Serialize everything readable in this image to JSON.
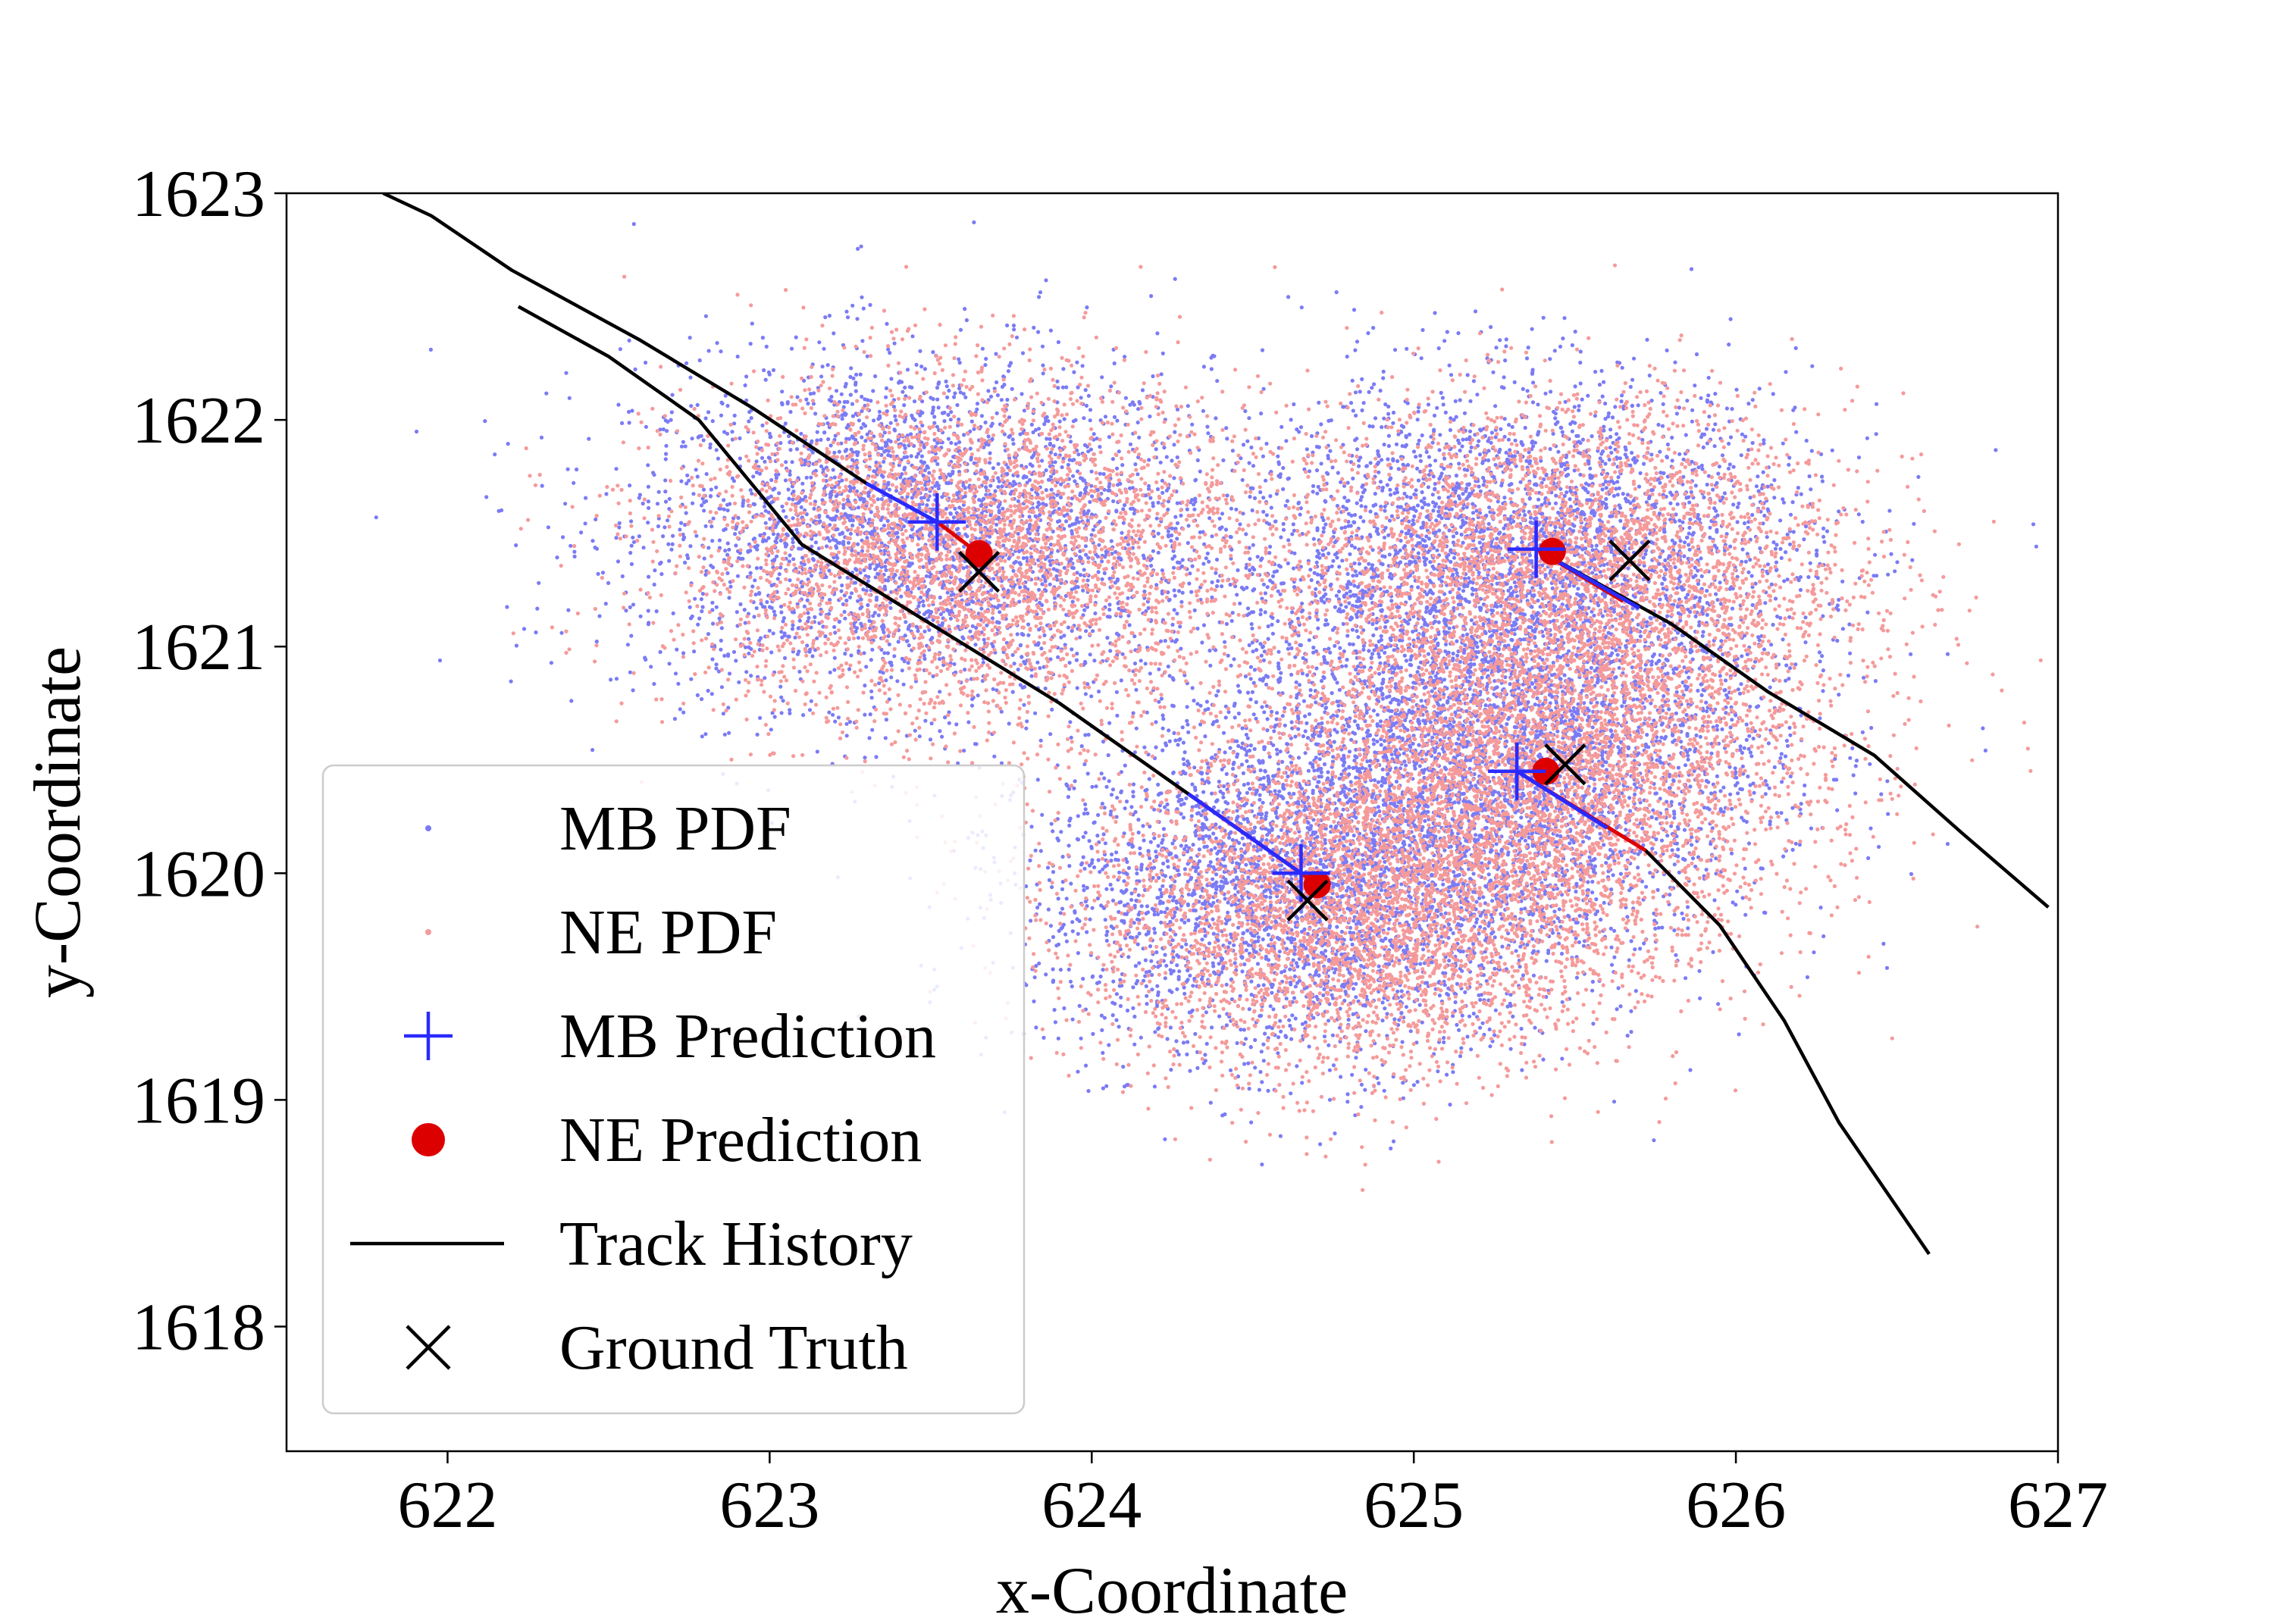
{
  "chart_data": {
    "type": "scatter",
    "title": "",
    "xlabel": "x-Coordinate",
    "ylabel": "y-Coordinate",
    "xlim": [
      621.5,
      627.0
    ],
    "ylim": [
      1617.45,
      1623.0
    ],
    "xticks": [
      622,
      623,
      624,
      625,
      626,
      627
    ],
    "yticks": [
      1618,
      1619,
      1620,
      1621,
      1622,
      1623
    ],
    "grid": false,
    "legend_position": "lower-left",
    "colors": {
      "mb": "#2a2aff",
      "mb_cloud": "#7b7bf5",
      "ne": "#dd0000",
      "ne_cloud": "#f59a9a",
      "track": "#000000",
      "ground_truth": "#000000"
    },
    "legend": [
      {
        "key": "mb_pdf",
        "label": "MB PDF"
      },
      {
        "key": "ne_pdf",
        "label": "NE PDF"
      },
      {
        "key": "mb_pred",
        "label": "MB Prediction"
      },
      {
        "key": "ne_pred",
        "label": "NE Prediction"
      },
      {
        "key": "track",
        "label": "Track History"
      },
      {
        "key": "ground_truth",
        "label": "Ground Truth"
      }
    ],
    "pdf_clusters": [
      {
        "center": [
          623.55,
          1621.45
        ],
        "spread": [
          0.45,
          0.38
        ]
      },
      {
        "center": [
          625.4,
          1621.35
        ],
        "spread": [
          0.45,
          0.38
        ]
      },
      {
        "center": [
          624.75,
          1619.85
        ],
        "spread": [
          0.42,
          0.36
        ]
      },
      {
        "center": [
          625.35,
          1620.45
        ],
        "spread": [
          0.42,
          0.38
        ]
      }
    ],
    "tracks": [
      {
        "name": "Track History 1",
        "x": [
          621.8,
          621.95,
          622.2,
          622.6,
          622.95,
          623.3,
          623.52
        ],
        "y": [
          1623.0,
          1622.9,
          1622.66,
          1622.35,
          1622.05,
          1621.72,
          1621.55
        ]
      },
      {
        "name": "Track History 2",
        "x": [
          622.22,
          622.5,
          622.78,
          623.1,
          623.5,
          623.9,
          624.3,
          624.65
        ],
        "y": [
          1622.5,
          1622.28,
          1622.0,
          1621.45,
          1621.1,
          1620.75,
          1620.35,
          1620.0
        ]
      },
      {
        "name": "Track History 3",
        "x": [
          625.38,
          625.8,
          626.1,
          626.43,
          626.7,
          626.97
        ],
        "y": [
          1621.43,
          1621.1,
          1620.8,
          1620.52,
          1620.18,
          1619.85
        ]
      },
      {
        "name": "Track History 4",
        "x": [
          625.32,
          625.72,
          625.95,
          626.15,
          626.32,
          626.6
        ],
        "y": [
          1620.45,
          1620.1,
          1619.77,
          1619.35,
          1618.9,
          1618.32
        ]
      }
    ],
    "mb_predictions": [
      {
        "x": 623.52,
        "y": 1621.55
      },
      {
        "x": 625.38,
        "y": 1621.43
      },
      {
        "x": 624.65,
        "y": 1620.0
      },
      {
        "x": 625.32,
        "y": 1620.45
      }
    ],
    "ne_predictions": [
      {
        "x": 623.65,
        "y": 1621.41
      },
      {
        "x": 625.43,
        "y": 1621.42
      },
      {
        "x": 624.7,
        "y": 1619.95
      },
      {
        "x": 625.41,
        "y": 1620.45
      }
    ],
    "ne_segments": [
      {
        "x": [
          623.52,
          623.65
        ],
        "y": [
          1621.55,
          1621.41
        ]
      },
      {
        "x": [
          625.38,
          625.65
        ],
        "y": [
          1621.43,
          1621.2
        ]
      },
      {
        "x": [
          624.3,
          624.7
        ],
        "y": [
          1620.35,
          1619.95
        ]
      },
      {
        "x": [
          625.32,
          625.72
        ],
        "y": [
          1620.45,
          1620.1
        ]
      }
    ],
    "ground_truth": [
      {
        "x": 623.65,
        "y": 1621.33
      },
      {
        "x": 625.67,
        "y": 1621.38
      },
      {
        "x": 624.67,
        "y": 1619.88
      },
      {
        "x": 625.47,
        "y": 1620.48
      }
    ]
  }
}
